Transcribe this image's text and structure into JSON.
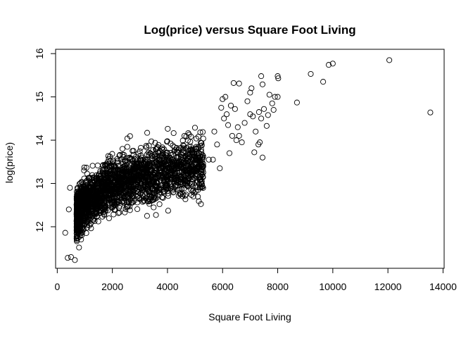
{
  "chart_data": {
    "type": "scatter",
    "title": "Log(price) versus Square Foot Living",
    "xlabel": "Square Foot Living",
    "ylabel": "log(price)",
    "xlim": [
      -60,
      14040
    ],
    "ylim": [
      11.04,
      16.1
    ],
    "x_ticks": [
      0,
      2000,
      4000,
      6000,
      8000,
      10000,
      12000,
      14000
    ],
    "y_ticks": [
      12,
      13,
      14,
      15,
      16
    ],
    "grid": false,
    "legend": "none",
    "marker": "open-circle",
    "color": "#000000",
    "cloud_summary": {
      "x_range": [
        300,
        5800
      ],
      "y_range": [
        11.2,
        15.1
      ],
      "trend": "log(price) rises with square footage, flattening at larger sizes"
    },
    "points": [
      [
        290,
        11.86
      ],
      [
        380,
        11.28
      ],
      [
        500,
        11.3
      ],
      [
        640,
        11.23
      ],
      [
        420,
        12.4
      ],
      [
        460,
        12.9
      ],
      [
        6400,
        15.32
      ],
      [
        6600,
        15.31
      ],
      [
        7000,
        15.1
      ],
      [
        7050,
        15.2
      ],
      [
        7400,
        15.48
      ],
      [
        7450,
        15.29
      ],
      [
        7900,
        15.0
      ],
      [
        8000,
        15.48
      ],
      [
        8020,
        15.43
      ],
      [
        8000,
        15.0
      ],
      [
        8700,
        14.87
      ],
      [
        9200,
        15.53
      ],
      [
        9650,
        15.35
      ],
      [
        9850,
        15.74
      ],
      [
        10000,
        15.77
      ],
      [
        12050,
        15.85
      ],
      [
        13540,
        14.64
      ],
      [
        6100,
        15.0
      ],
      [
        6300,
        14.8
      ],
      [
        6450,
        14.72
      ],
      [
        6550,
        14.3
      ],
      [
        6600,
        14.1
      ],
      [
        6700,
        13.95
      ],
      [
        6800,
        14.4
      ],
      [
        6900,
        14.9
      ],
      [
        7000,
        14.6
      ],
      [
        7100,
        14.55
      ],
      [
        7150,
        13.72
      ],
      [
        7200,
        14.2
      ],
      [
        7300,
        13.9
      ],
      [
        7320,
        14.65
      ],
      [
        7350,
        13.95
      ],
      [
        7400,
        14.5
      ],
      [
        7450,
        13.6
      ],
      [
        7500,
        14.72
      ],
      [
        7600,
        14.33
      ],
      [
        7650,
        14.58
      ],
      [
        7700,
        15.05
      ],
      [
        7800,
        14.85
      ],
      [
        7850,
        14.7
      ],
      [
        6000,
        14.95
      ],
      [
        6150,
        14.6
      ],
      [
        6200,
        14.35
      ],
      [
        6250,
        13.7
      ],
      [
        5900,
        13.35
      ],
      [
        5800,
        13.9
      ],
      [
        5700,
        14.2
      ],
      [
        5650,
        13.55
      ],
      [
        6350,
        14.1
      ],
      [
        6500,
        14.0
      ],
      [
        5950,
        14.75
      ],
      [
        6050,
        14.5
      ],
      [
        5100,
        13.05
      ],
      [
        4900,
        13.1
      ],
      [
        5300,
        13.4
      ],
      [
        5500,
        13.55
      ],
      [
        4700,
        12.95
      ],
      [
        4400,
        12.85
      ]
    ]
  }
}
